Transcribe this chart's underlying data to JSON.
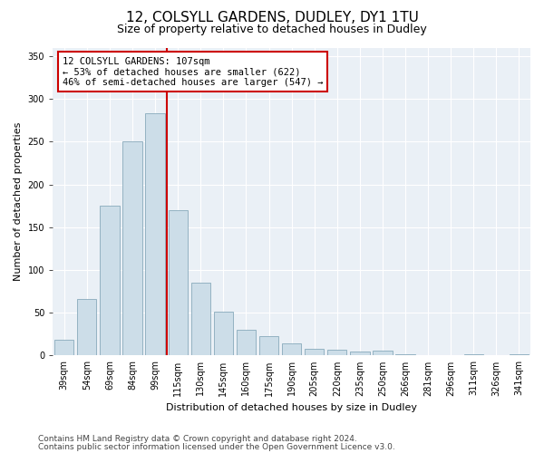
{
  "title": "12, COLSYLL GARDENS, DUDLEY, DY1 1TU",
  "subtitle": "Size of property relative to detached houses in Dudley",
  "xlabel": "Distribution of detached houses by size in Dudley",
  "ylabel": "Number of detached properties",
  "categories": [
    "39sqm",
    "54sqm",
    "69sqm",
    "84sqm",
    "99sqm",
    "115sqm",
    "130sqm",
    "145sqm",
    "160sqm",
    "175sqm",
    "190sqm",
    "205sqm",
    "220sqm",
    "235sqm",
    "250sqm",
    "266sqm",
    "281sqm",
    "296sqm",
    "311sqm",
    "326sqm",
    "341sqm"
  ],
  "values": [
    18,
    66,
    175,
    250,
    283,
    170,
    85,
    51,
    30,
    23,
    14,
    8,
    7,
    5,
    6,
    1,
    0,
    0,
    2,
    0,
    2
  ],
  "bar_color": "#ccdde8",
  "bar_edge_color": "#88aabb",
  "property_label": "12 COLSYLL GARDENS: 107sqm",
  "annotation_line1": "← 53% of detached houses are smaller (622)",
  "annotation_line2": "46% of semi-detached houses are larger (547) →",
  "vline_color": "#cc0000",
  "vline_x": 4.5,
  "annotation_box_facecolor": "#ffffff",
  "annotation_box_edgecolor": "#cc0000",
  "ylim": [
    0,
    360
  ],
  "yticks": [
    0,
    50,
    100,
    150,
    200,
    250,
    300,
    350
  ],
  "bg_color": "#ffffff",
  "plot_bg_color": "#eaf0f6",
  "title_fontsize": 11,
  "subtitle_fontsize": 9,
  "axis_label_fontsize": 8,
  "tick_fontsize": 7,
  "annotation_fontsize": 7.5,
  "footer_fontsize": 6.5,
  "footer_line1": "Contains HM Land Registry data © Crown copyright and database right 2024.",
  "footer_line2": "Contains public sector information licensed under the Open Government Licence v3.0."
}
